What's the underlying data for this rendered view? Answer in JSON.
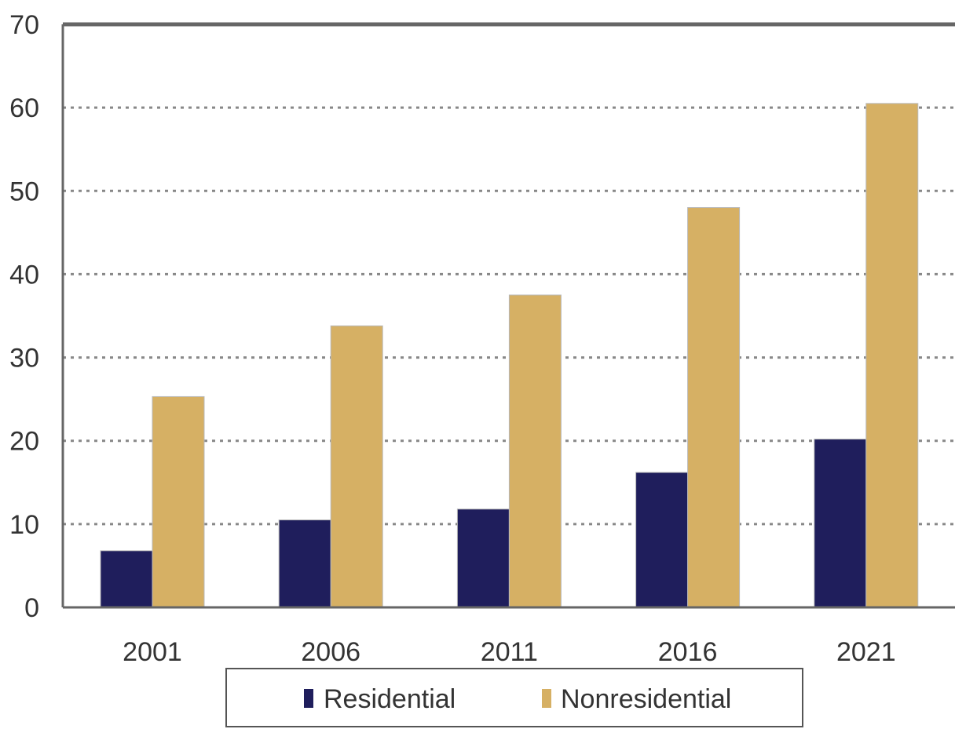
{
  "chart_data": {
    "type": "bar",
    "categories": [
      "2001",
      "2006",
      "2011",
      "2016",
      "2021"
    ],
    "series": [
      {
        "name": "Residential",
        "values": [
          6.8,
          10.5,
          11.8,
          16.2,
          20.2
        ],
        "color": "#1f1e5c"
      },
      {
        "name": "Nonresidential",
        "values": [
          25.3,
          33.8,
          37.5,
          48.0,
          60.5
        ],
        "color": "#d6b064"
      }
    ],
    "y_ticks": [
      "0",
      "10",
      "20",
      "30",
      "40",
      "50",
      "60",
      "70"
    ],
    "ylim": [
      0,
      70
    ],
    "grid": true,
    "grid_style": "dotted",
    "legend_position": "bottom",
    "colors": {
      "axis": "#666666",
      "grid": "#888888",
      "text": "#333333"
    }
  }
}
